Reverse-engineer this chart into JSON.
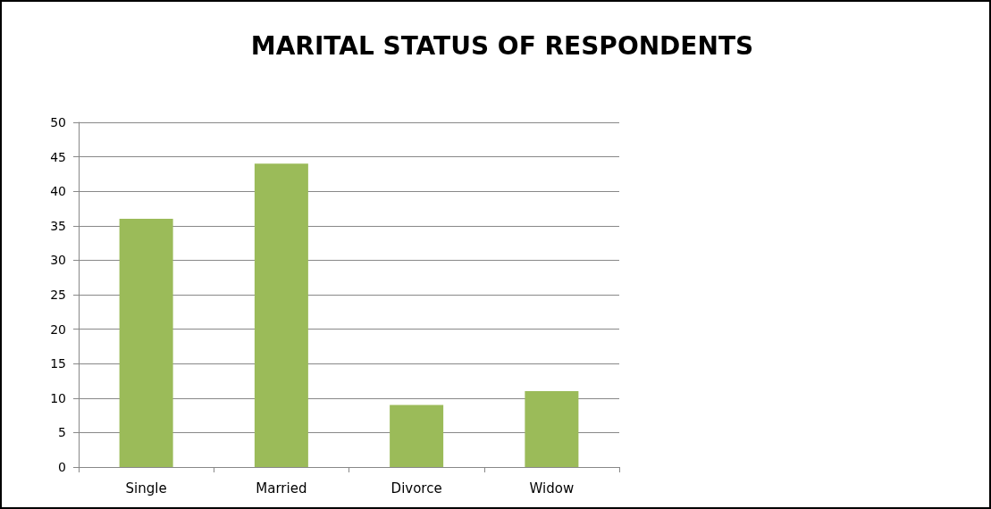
{
  "chart_data": {
    "type": "bar",
    "title": "MARITAL STATUS OF RESPONDENTS",
    "categories": [
      "Single",
      "Married",
      "Divorce",
      "Widow"
    ],
    "values": [
      36,
      44,
      9,
      11
    ],
    "color": "#9bbb59",
    "ylim": [
      0,
      50
    ],
    "yticks": [
      0,
      5,
      10,
      15,
      20,
      25,
      30,
      35,
      40,
      45,
      50
    ],
    "grid": "y"
  }
}
